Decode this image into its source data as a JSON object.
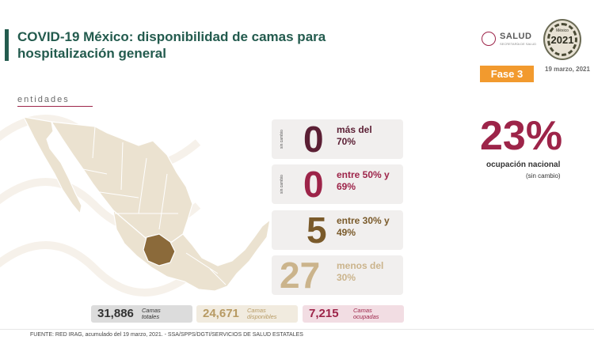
{
  "title": "COVID-19 México: disponibilidad de camas para hospitalización general",
  "logo": {
    "name": "SALUD",
    "subtitle": "SECRETARÍA DE SALUD"
  },
  "badge": {
    "top_text": "México",
    "year": "2021"
  },
  "fase": "Fase 3",
  "date": "19 marzo, 2021",
  "entidades_label": "entidades",
  "colors": {
    "green": "#235b4e",
    "wine": "#9d2449",
    "brown": "#7a5a2a",
    "tan": "#cbb48c",
    "orange": "#f29a2e",
    "map_fill": "#ebe2d0",
    "map_highlight": "#8b6a3a"
  },
  "cards": [
    {
      "side": "sin cambio",
      "number": "0",
      "label": "más del 70%",
      "color": "#5b1f34"
    },
    {
      "side": "sin cambio",
      "number": "0",
      "label": "entre 50% y 69%",
      "color": "#9d2449"
    },
    {
      "side": "",
      "number": "5",
      "label": "entre 30% y 49%",
      "color": "#7a5a2a"
    },
    {
      "side": "",
      "number": "27",
      "label": "menos del 30%",
      "color": "#cbb48c"
    }
  ],
  "national": {
    "percent": "23%",
    "label": "ocupación nacional",
    "sub": "(sin cambio)"
  },
  "stats": [
    {
      "number": "31,886",
      "text": "Camas totales",
      "bg": "#dcdcdc",
      "color": "#333333"
    },
    {
      "number": "24,671",
      "text": "Camas disponibles",
      "bg": "#f1ebdf",
      "color": "#b79a63"
    },
    {
      "number": "7,215",
      "text": "Camas ocupadas",
      "bg": "#f2dde3",
      "color": "#9d2449"
    }
  ],
  "footer": "FUENTE: RED IRAG, acumulado del 19 marzo, 2021. -   SSA/SPPS/DGTI/SERVICIOS DE SALUD ESTATALES"
}
